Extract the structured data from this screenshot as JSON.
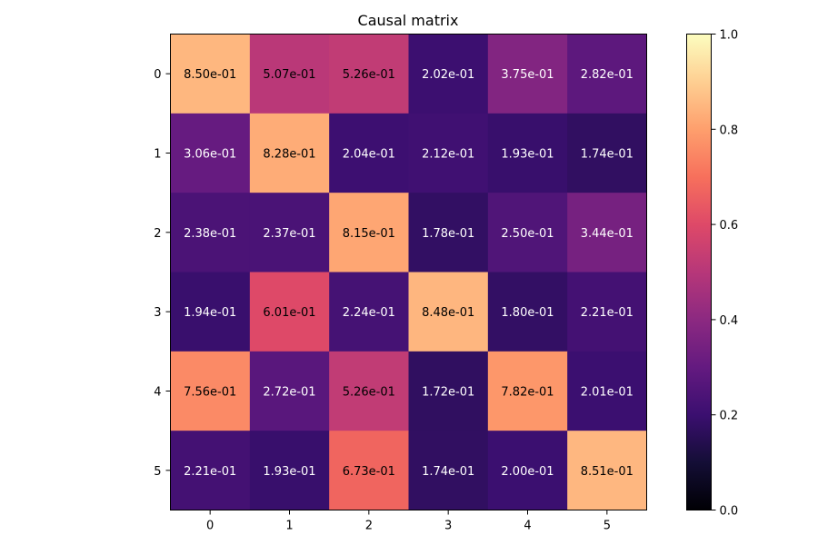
{
  "chart_data": {
    "type": "heatmap",
    "title": "Causal matrix",
    "x_categories": [
      "0",
      "1",
      "2",
      "3",
      "4",
      "5"
    ],
    "y_categories": [
      "0",
      "1",
      "2",
      "3",
      "4",
      "5"
    ],
    "values": [
      [
        0.85,
        0.507,
        0.526,
        0.202,
        0.375,
        0.282
      ],
      [
        0.306,
        0.828,
        0.204,
        0.212,
        0.193,
        0.174
      ],
      [
        0.238,
        0.237,
        0.815,
        0.178,
        0.25,
        0.344
      ],
      [
        0.194,
        0.601,
        0.224,
        0.848,
        0.18,
        0.221
      ],
      [
        0.756,
        0.272,
        0.526,
        0.172,
        0.782,
        0.201
      ],
      [
        0.221,
        0.193,
        0.673,
        0.174,
        0.2,
        0.851
      ]
    ],
    "cell_labels": [
      [
        "8.50e-01",
        "5.07e-01",
        "5.26e-01",
        "2.02e-01",
        "3.75e-01",
        "2.82e-01"
      ],
      [
        "3.06e-01",
        "8.28e-01",
        "2.04e-01",
        "2.12e-01",
        "1.93e-01",
        "1.74e-01"
      ],
      [
        "2.38e-01",
        "2.37e-01",
        "8.15e-01",
        "1.78e-01",
        "2.50e-01",
        "3.44e-01"
      ],
      [
        "1.94e-01",
        "6.01e-01",
        "2.24e-01",
        "8.48e-01",
        "1.80e-01",
        "2.21e-01"
      ],
      [
        "7.56e-01",
        "2.72e-01",
        "5.26e-01",
        "1.72e-01",
        "7.82e-01",
        "2.01e-01"
      ],
      [
        "2.21e-01",
        "1.93e-01",
        "6.73e-01",
        "1.74e-01",
        "2.00e-01",
        "8.51e-01"
      ]
    ],
    "colormap": "magma",
    "vmin": 0.0,
    "vmax": 1.0,
    "colorbar": {
      "ticks": [
        0.0,
        0.2,
        0.4,
        0.6,
        0.8,
        1.0
      ],
      "tick_labels": [
        "0.0",
        "0.2",
        "0.4",
        "0.6",
        "0.8",
        "1.0"
      ],
      "placement": "right"
    },
    "text_color_dark": "#000000",
    "text_color_light": "#ffffff",
    "grid": false
  }
}
